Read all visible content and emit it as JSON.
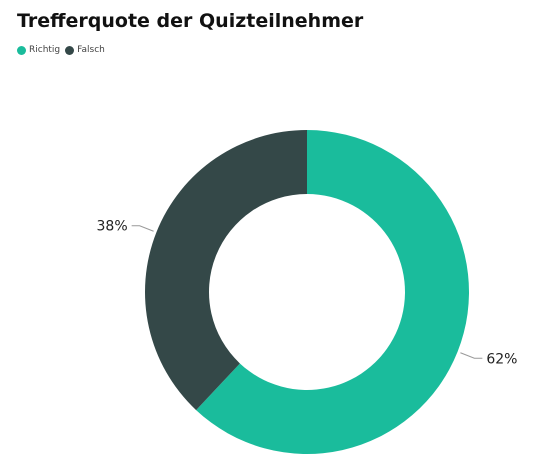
{
  "chart_data": {
    "type": "pie",
    "title": "Trefferquote der Quizteilnehmer",
    "donut": true,
    "legend_position": "top-left",
    "categories": [
      "Richtig",
      "Falsch"
    ],
    "values": [
      62,
      38
    ],
    "data_labels": [
      "62%",
      "38%"
    ],
    "colors": [
      "#1abc9c",
      "#344848"
    ]
  }
}
